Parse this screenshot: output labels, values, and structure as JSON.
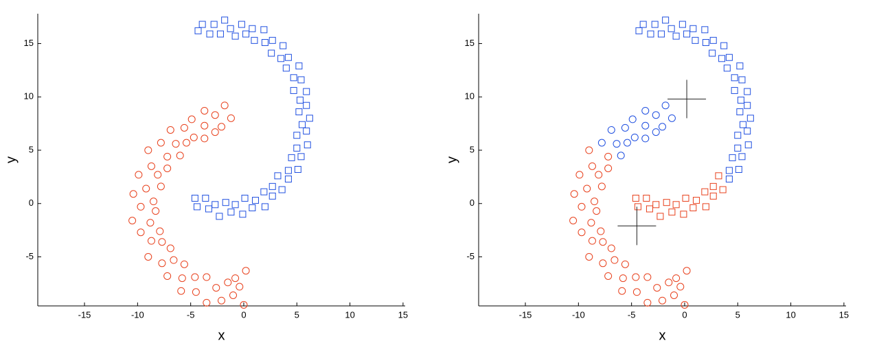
{
  "chart_data": [
    {
      "type": "scatter",
      "xlabel": "x",
      "ylabel": "y",
      "xlim": [
        -19.4,
        15.2
      ],
      "ylim": [
        -9.6,
        17.8
      ],
      "xticks": [
        -15,
        -10,
        -5,
        0,
        5,
        10,
        15
      ],
      "yticks": [
        -5,
        0,
        5,
        10,
        15
      ],
      "series": [
        {
          "color": "#e8401c",
          "marker": "o",
          "x": [
            -1.2,
            -1.8,
            -2.1,
            -2.7,
            -2.7,
            -3.7,
            -3.7,
            -3.7,
            -4.9,
            -4.7,
            -5.6,
            -5.4,
            -6.9,
            -6.4,
            -6.0,
            -7.8,
            -7.2,
            -9.0,
            -7.2,
            -8.7,
            -8.1,
            -9.9,
            -7.8,
            -9.2,
            -10.4,
            -8.5,
            -9.7,
            -8.3,
            -10.5,
            -8.8,
            -9.7,
            -7.9,
            -8.7,
            -7.7,
            -9.0,
            -6.9,
            -7.7,
            -6.6,
            -7.2,
            -5.6,
            -5.8,
            -5.9,
            -4.6,
            -4.5,
            -3.5,
            -3.5,
            -2.6,
            -2.1,
            -1.5,
            -1.0,
            -0.8,
            0.0,
            0.2,
            -0.4
          ],
          "values": [
            8.0,
            9.2,
            7.2,
            8.3,
            6.7,
            8.7,
            7.3,
            6.1,
            7.9,
            6.2,
            7.1,
            5.7,
            6.9,
            5.6,
            4.5,
            5.7,
            4.4,
            5.0,
            3.3,
            3.5,
            2.7,
            2.7,
            1.6,
            1.4,
            0.9,
            0.2,
            -0.3,
            -0.7,
            -1.6,
            -1.8,
            -2.7,
            -2.6,
            -3.5,
            -3.6,
            -5.0,
            -4.2,
            -5.6,
            -5.3,
            -6.8,
            -5.7,
            -7.0,
            -8.2,
            -6.9,
            -8.3,
            -6.9,
            -9.3,
            -7.9,
            -9.1,
            -7.4,
            -8.6,
            -7.0,
            -9.5,
            -6.3,
            -7.8
          ]
        },
        {
          "color": "#1f4fe0",
          "marker": "s",
          "x": [
            -4.3,
            -3.9,
            -3.2,
            -2.8,
            -2.2,
            -1.8,
            -1.25,
            -0.8,
            -0.2,
            0.2,
            0.8,
            1.0,
            1.9,
            2.0,
            2.7,
            2.6,
            3.7,
            3.5,
            4.2,
            4.0,
            5.2,
            4.7,
            5.4,
            4.7,
            5.9,
            5.3,
            5.9,
            5.2,
            6.2,
            5.5,
            5.9,
            5.0,
            6.0,
            5.0,
            5.4,
            4.5,
            5.1,
            4.2,
            4.2,
            3.2,
            3.6,
            2.7,
            2.7,
            1.9,
            2.0,
            1.1,
            0.8,
            0.1,
            -0.1,
            -0.8,
            -1.2,
            -1.7,
            -2.3,
            -2.7,
            -3.3,
            -3.6,
            -4.4,
            -4.6
          ],
          "values": [
            16.2,
            16.8,
            15.9,
            16.8,
            15.9,
            17.2,
            16.4,
            15.7,
            16.8,
            15.9,
            16.4,
            15.3,
            16.3,
            15.1,
            15.3,
            14.1,
            14.8,
            13.6,
            13.7,
            12.7,
            12.9,
            11.8,
            11.6,
            10.6,
            10.5,
            9.7,
            9.2,
            8.6,
            8.0,
            7.4,
            6.8,
            6.4,
            5.5,
            5.2,
            4.4,
            4.3,
            3.2,
            3.1,
            2.3,
            2.6,
            1.3,
            1.6,
            0.7,
            1.1,
            -0.3,
            0.3,
            -0.4,
            0.5,
            -1.0,
            -0.1,
            -0.8,
            0.1,
            -1.2,
            -0.1,
            -0.5,
            0.5,
            -0.3,
            0.5
          ]
        }
      ]
    },
    {
      "type": "scatter",
      "xlabel": "x",
      "ylabel": "y",
      "xlim": [
        -19.4,
        15.2
      ],
      "ylim": [
        -9.6,
        17.8
      ],
      "xticks": [
        -15,
        -10,
        -5,
        0,
        5,
        10,
        15
      ],
      "yticks": [
        -5,
        0,
        5,
        10,
        15
      ],
      "series": [
        {
          "color": "#1f4fe0",
          "marker": "s",
          "x": [
            -4.3,
            -3.9,
            -3.2,
            -2.8,
            -2.2,
            -1.8,
            -1.25,
            -0.8,
            -0.2,
            0.2,
            0.8,
            1.0,
            1.9,
            2.0,
            2.7,
            2.6,
            3.7,
            3.5,
            4.2,
            4.0,
            5.2,
            4.7,
            5.4,
            4.7,
            5.9,
            5.3,
            5.9,
            5.2,
            6.2,
            5.5,
            5.9,
            5.0,
            6.0,
            5.0,
            5.4,
            4.5,
            5.1,
            4.2,
            4.2
          ],
          "values": [
            16.2,
            16.8,
            15.9,
            16.8,
            15.9,
            17.2,
            16.4,
            15.7,
            16.8,
            15.9,
            16.4,
            15.3,
            16.3,
            15.1,
            15.3,
            14.1,
            14.8,
            13.6,
            13.7,
            12.7,
            12.9,
            11.8,
            11.6,
            10.6,
            10.5,
            9.7,
            9.2,
            8.6,
            8.0,
            7.4,
            6.8,
            6.4,
            5.5,
            5.2,
            4.4,
            4.3,
            3.2,
            3.1,
            2.3
          ]
        },
        {
          "color": "#e8401c",
          "marker": "s",
          "x": [
            3.2,
            3.6,
            2.7,
            2.7,
            1.9,
            2.0,
            1.1,
            0.8,
            0.1,
            -0.1,
            -0.8,
            -1.2,
            -1.7,
            -2.3,
            -2.7,
            -3.3,
            -3.6,
            -4.4,
            -4.6
          ],
          "values": [
            2.6,
            1.3,
            1.6,
            0.7,
            1.1,
            -0.3,
            0.3,
            -0.4,
            0.5,
            -1.0,
            -0.1,
            -0.8,
            0.1,
            -1.2,
            -0.1,
            -0.5,
            0.5,
            -0.3,
            0.5
          ]
        },
        {
          "color": "#1f4fe0",
          "marker": "o",
          "x": [
            -1.2,
            -1.8,
            -2.1,
            -2.7,
            -2.7,
            -3.7,
            -3.7,
            -3.7,
            -4.9,
            -4.7,
            -5.6,
            -5.4,
            -6.9,
            -6.4,
            -6.0,
            -7.8
          ],
          "values": [
            8.0,
            9.2,
            7.2,
            8.3,
            6.7,
            8.7,
            7.3,
            6.1,
            7.9,
            6.2,
            7.1,
            5.7,
            6.9,
            5.6,
            4.5,
            5.7
          ]
        },
        {
          "color": "#e8401c",
          "marker": "o",
          "x": [
            -7.2,
            -9.0,
            -7.2,
            -8.7,
            -8.1,
            -9.9,
            -7.8,
            -9.2,
            -10.4,
            -8.5,
            -9.7,
            -8.3,
            -10.5,
            -8.8,
            -9.7,
            -7.9,
            -8.7,
            -7.7,
            -9.0,
            -6.9,
            -7.7,
            -6.6,
            -7.2,
            -5.6,
            -5.8,
            -5.9,
            -4.6,
            -4.5,
            -3.5,
            -3.5,
            -2.6,
            -2.1,
            -1.5,
            -1.0,
            -0.8,
            0.0,
            0.2,
            -0.4
          ],
          "values": [
            4.4,
            5.0,
            3.3,
            3.5,
            2.7,
            2.7,
            1.6,
            1.4,
            0.9,
            0.2,
            -0.3,
            -0.7,
            -1.6,
            -1.8,
            -2.7,
            -2.6,
            -3.5,
            -3.6,
            -5.0,
            -4.2,
            -5.6,
            -5.3,
            -6.8,
            -5.7,
            -7.0,
            -8.2,
            -6.9,
            -8.3,
            -6.9,
            -9.3,
            -7.9,
            -9.1,
            -7.4,
            -8.6,
            -7.0,
            -9.5,
            -6.3,
            -7.8
          ]
        },
        {
          "color": "#222222",
          "marker": "+",
          "x": [
            0.2,
            -4.5
          ],
          "values": [
            9.8,
            -2.1
          ]
        }
      ]
    }
  ]
}
